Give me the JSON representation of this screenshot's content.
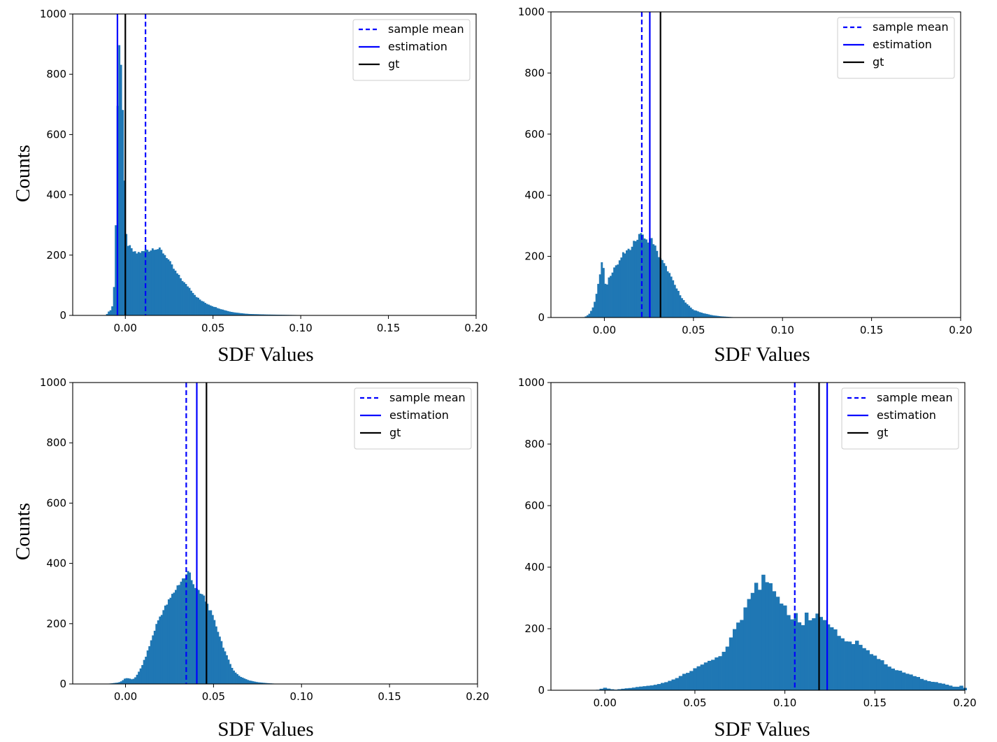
{
  "figure": {
    "xlabel": "SDF Values",
    "ylabel": "Counts"
  },
  "chart_data": [
    {
      "type": "bar",
      "subtype": "histogram",
      "panel": "top-left",
      "xlabel": "SDF Values",
      "ylabel": "Counts",
      "xlim": [
        -0.03,
        0.2
      ],
      "ylim": [
        0,
        1000
      ],
      "xticks": [
        "0.00",
        "0.05",
        "0.10",
        "0.15",
        "0.20"
      ],
      "yticks": [
        "0",
        "200",
        "400",
        "600",
        "800",
        "1000"
      ],
      "bar_color": "#1f77b4",
      "histogram_anchors": [
        [
          -0.011,
          0
        ],
        [
          -0.01,
          10
        ],
        [
          -0.008,
          20
        ],
        [
          -0.007,
          40
        ],
        [
          -0.006,
          150
        ],
        [
          -0.005,
          450
        ],
        [
          -0.004,
          930
        ],
        [
          -0.003,
          900
        ],
        [
          -0.002,
          780
        ],
        [
          -0.001,
          580
        ],
        [
          0.0,
          290
        ],
        [
          0.001,
          240
        ],
        [
          0.002,
          230
        ],
        [
          0.004,
          215
        ],
        [
          0.006,
          205
        ],
        [
          0.008,
          210
        ],
        [
          0.01,
          210
        ],
        [
          0.012,
          220
        ],
        [
          0.014,
          215
        ],
        [
          0.016,
          225
        ],
        [
          0.018,
          222
        ],
        [
          0.02,
          218
        ],
        [
          0.022,
          205
        ],
        [
          0.024,
          190
        ],
        [
          0.026,
          170
        ],
        [
          0.028,
          150
        ],
        [
          0.03,
          135
        ],
        [
          0.032,
          120
        ],
        [
          0.034,
          105
        ],
        [
          0.036,
          95
        ],
        [
          0.038,
          80
        ],
        [
          0.04,
          65
        ],
        [
          0.043,
          50
        ],
        [
          0.046,
          40
        ],
        [
          0.05,
          30
        ],
        [
          0.055,
          20
        ],
        [
          0.06,
          12
        ],
        [
          0.065,
          8
        ],
        [
          0.07,
          5
        ],
        [
          0.08,
          3
        ],
        [
          0.09,
          2
        ],
        [
          0.1,
          1
        ],
        [
          0.105,
          0
        ]
      ],
      "bin_width": 0.001,
      "vlines": [
        {
          "label": "sample mean",
          "x": 0.0115,
          "style": "dashed",
          "color": "#0000ff"
        },
        {
          "label": "estimation",
          "x": -0.0045,
          "style": "solid",
          "color": "#0000ff"
        },
        {
          "label": "gt",
          "x": 0.0,
          "style": "solid",
          "color": "#000000"
        }
      ],
      "legend": {
        "location": "top-right",
        "entries": [
          "sample mean",
          "estimation",
          "gt"
        ]
      }
    },
    {
      "type": "bar",
      "subtype": "histogram",
      "panel": "top-right",
      "xlabel": "SDF Values",
      "ylabel": "",
      "xlim": [
        -0.03,
        0.2
      ],
      "ylim": [
        0,
        1000
      ],
      "xticks": [
        "0.00",
        "0.05",
        "0.10",
        "0.15",
        "0.20"
      ],
      "yticks": [
        "0",
        "200",
        "400",
        "600",
        "800",
        "1000"
      ],
      "bar_color": "#1f77b4",
      "histogram_anchors": [
        [
          -0.012,
          0
        ],
        [
          -0.01,
          5
        ],
        [
          -0.008,
          15
        ],
        [
          -0.006,
          40
        ],
        [
          -0.004,
          90
        ],
        [
          -0.002,
          160
        ],
        [
          -0.001,
          200
        ],
        [
          0.0,
          120
        ],
        [
          0.001,
          95
        ],
        [
          0.002,
          125
        ],
        [
          0.004,
          145
        ],
        [
          0.006,
          170
        ],
        [
          0.008,
          175
        ],
        [
          0.01,
          205
        ],
        [
          0.012,
          215
        ],
        [
          0.014,
          220
        ],
        [
          0.016,
          245
        ],
        [
          0.018,
          255
        ],
        [
          0.02,
          270
        ],
        [
          0.021,
          290
        ],
        [
          0.022,
          255
        ],
        [
          0.024,
          250
        ],
        [
          0.026,
          260
        ],
        [
          0.028,
          240
        ],
        [
          0.03,
          205
        ],
        [
          0.032,
          190
        ],
        [
          0.034,
          170
        ],
        [
          0.036,
          150
        ],
        [
          0.038,
          125
        ],
        [
          0.04,
          100
        ],
        [
          0.042,
          80
        ],
        [
          0.044,
          60
        ],
        [
          0.046,
          45
        ],
        [
          0.048,
          35
        ],
        [
          0.05,
          25
        ],
        [
          0.055,
          15
        ],
        [
          0.06,
          8
        ],
        [
          0.065,
          4
        ],
        [
          0.07,
          2
        ],
        [
          0.075,
          0
        ]
      ],
      "bin_width": 0.001,
      "vlines": [
        {
          "label": "sample mean",
          "x": 0.021,
          "style": "dashed",
          "color": "#0000ff"
        },
        {
          "label": "estimation",
          "x": 0.0255,
          "style": "solid",
          "color": "#0000ff"
        },
        {
          "label": "gt",
          "x": 0.0315,
          "style": "solid",
          "color": "#000000"
        }
      ],
      "legend": {
        "location": "top-right",
        "entries": [
          "sample mean",
          "estimation",
          "gt"
        ]
      }
    },
    {
      "type": "bar",
      "subtype": "histogram",
      "panel": "bottom-left",
      "xlabel": "SDF Values",
      "ylabel": "Counts",
      "xlim": [
        -0.03,
        0.2
      ],
      "ylim": [
        0,
        1000
      ],
      "xticks": [
        "0.00",
        "0.05",
        "0.10",
        "0.15",
        "0.20"
      ],
      "yticks": [
        "0",
        "200",
        "400",
        "600",
        "800",
        "1000"
      ],
      "bar_color": "#1f77b4",
      "histogram_anchors": [
        [
          -0.012,
          0
        ],
        [
          -0.008,
          2
        ],
        [
          -0.004,
          5
        ],
        [
          -0.002,
          10
        ],
        [
          0.0,
          20
        ],
        [
          0.002,
          18
        ],
        [
          0.004,
          15
        ],
        [
          0.006,
          25
        ],
        [
          0.008,
          45
        ],
        [
          0.01,
          70
        ],
        [
          0.012,
          100
        ],
        [
          0.014,
          135
        ],
        [
          0.016,
          170
        ],
        [
          0.018,
          205
        ],
        [
          0.02,
          230
        ],
        [
          0.022,
          250
        ],
        [
          0.024,
          270
        ],
        [
          0.026,
          290
        ],
        [
          0.028,
          310
        ],
        [
          0.03,
          330
        ],
        [
          0.032,
          345
        ],
        [
          0.034,
          355
        ],
        [
          0.036,
          375
        ],
        [
          0.037,
          365
        ],
        [
          0.038,
          340
        ],
        [
          0.04,
          315
        ],
        [
          0.042,
          300
        ],
        [
          0.044,
          295
        ],
        [
          0.046,
          270
        ],
        [
          0.048,
          245
        ],
        [
          0.05,
          215
        ],
        [
          0.052,
          185
        ],
        [
          0.054,
          150
        ],
        [
          0.056,
          115
        ],
        [
          0.058,
          85
        ],
        [
          0.06,
          60
        ],
        [
          0.062,
          40
        ],
        [
          0.065,
          25
        ],
        [
          0.07,
          12
        ],
        [
          0.075,
          6
        ],
        [
          0.08,
          3
        ],
        [
          0.085,
          1
        ],
        [
          0.09,
          0
        ]
      ],
      "bin_width": 0.001,
      "vlines": [
        {
          "label": "sample mean",
          "x": 0.0345,
          "style": "dashed",
          "color": "#0000ff"
        },
        {
          "label": "estimation",
          "x": 0.0405,
          "style": "solid",
          "color": "#0000ff"
        },
        {
          "label": "gt",
          "x": 0.046,
          "style": "solid",
          "color": "#000000"
        }
      ],
      "legend": {
        "location": "top-right",
        "entries": [
          "sample mean",
          "estimation",
          "gt"
        ]
      }
    },
    {
      "type": "bar",
      "subtype": "histogram",
      "panel": "bottom-right",
      "xlabel": "SDF Values",
      "ylabel": "",
      "xlim": [
        -0.03,
        0.2
      ],
      "ylim": [
        0,
        1000
      ],
      "xticks": [
        "0.00",
        "0.05",
        "0.10",
        "0.15",
        "0.20"
      ],
      "yticks": [
        "0",
        "200",
        "400",
        "600",
        "800",
        "1000"
      ],
      "bar_color": "#1f77b4",
      "histogram_anchors": [
        [
          -0.005,
          0
        ],
        [
          0.0,
          8
        ],
        [
          0.003,
          4
        ],
        [
          0.006,
          2
        ],
        [
          0.01,
          5
        ],
        [
          0.015,
          8
        ],
        [
          0.02,
          12
        ],
        [
          0.025,
          15
        ],
        [
          0.03,
          20
        ],
        [
          0.035,
          28
        ],
        [
          0.04,
          40
        ],
        [
          0.045,
          55
        ],
        [
          0.05,
          70
        ],
        [
          0.055,
          85
        ],
        [
          0.06,
          100
        ],
        [
          0.065,
          115
        ],
        [
          0.068,
          140
        ],
        [
          0.07,
          170
        ],
        [
          0.072,
          195
        ],
        [
          0.074,
          215
        ],
        [
          0.076,
          230
        ],
        [
          0.078,
          265
        ],
        [
          0.08,
          290
        ],
        [
          0.082,
          320
        ],
        [
          0.084,
          340
        ],
        [
          0.086,
          330
        ],
        [
          0.088,
          365
        ],
        [
          0.09,
          350
        ],
        [
          0.092,
          340
        ],
        [
          0.094,
          315
        ],
        [
          0.096,
          300
        ],
        [
          0.098,
          285
        ],
        [
          0.1,
          270
        ],
        [
          0.102,
          245
        ],
        [
          0.104,
          230
        ],
        [
          0.106,
          250
        ],
        [
          0.108,
          225
        ],
        [
          0.11,
          215
        ],
        [
          0.112,
          250
        ],
        [
          0.114,
          225
        ],
        [
          0.116,
          235
        ],
        [
          0.118,
          245
        ],
        [
          0.12,
          240
        ],
        [
          0.122,
          230
        ],
        [
          0.124,
          215
        ],
        [
          0.126,
          200
        ],
        [
          0.128,
          195
        ],
        [
          0.13,
          180
        ],
        [
          0.132,
          170
        ],
        [
          0.134,
          160
        ],
        [
          0.136,
          155
        ],
        [
          0.138,
          150
        ],
        [
          0.14,
          165
        ],
        [
          0.142,
          145
        ],
        [
          0.144,
          140
        ],
        [
          0.146,
          130
        ],
        [
          0.148,
          120
        ],
        [
          0.15,
          110
        ],
        [
          0.152,
          100
        ],
        [
          0.154,
          95
        ],
        [
          0.156,
          85
        ],
        [
          0.158,
          75
        ],
        [
          0.16,
          70
        ],
        [
          0.165,
          60
        ],
        [
          0.17,
          50
        ],
        [
          0.175,
          40
        ],
        [
          0.18,
          30
        ],
        [
          0.185,
          25
        ],
        [
          0.19,
          18
        ],
        [
          0.195,
          10
        ],
        [
          0.198,
          15
        ],
        [
          0.2,
          8
        ]
      ],
      "bin_width": 0.002,
      "vlines": [
        {
          "label": "sample mean",
          "x": 0.1055,
          "style": "dashed",
          "color": "#0000ff"
        },
        {
          "label": "estimation",
          "x": 0.1235,
          "style": "solid",
          "color": "#0000ff"
        },
        {
          "label": "gt",
          "x": 0.119,
          "style": "solid",
          "color": "#000000"
        }
      ],
      "legend": {
        "location": "top-right",
        "entries": [
          "sample mean",
          "estimation",
          "gt"
        ]
      }
    }
  ]
}
